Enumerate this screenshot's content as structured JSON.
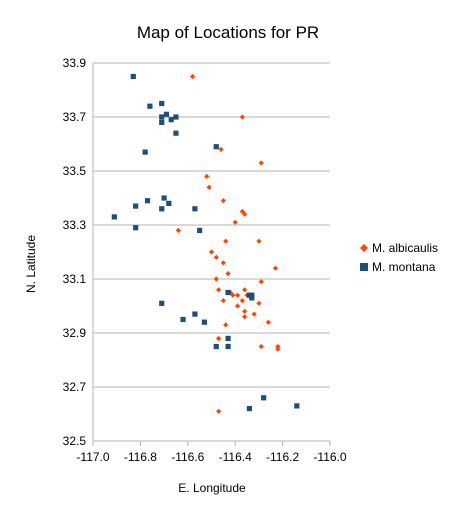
{
  "chart_data": {
    "type": "scatter",
    "title": "Map of Locations for PR",
    "xlabel": "E. Longitude",
    "ylabel": "N. Latitude",
    "xlim": [
      -117.0,
      -116.0
    ],
    "ylim": [
      32.5,
      33.9
    ],
    "x_ticks": [
      -117.0,
      -116.8,
      -116.6,
      -116.4,
      -116.2,
      -116.0
    ],
    "x_tick_labels": [
      "-117.0",
      "-116.8",
      "-116.6",
      "-116.4",
      "-116.2",
      "-116.0"
    ],
    "y_ticks": [
      32.5,
      32.7,
      32.9,
      33.1,
      33.3,
      33.5,
      33.7,
      33.9
    ],
    "y_tick_labels": [
      "32.5",
      "32.7",
      "32.9",
      "33.1",
      "33.3",
      "33.5",
      "33.7",
      "33.9"
    ],
    "grid": "horizontal",
    "legend_position": "right",
    "series": [
      {
        "name": "M. albicaulis",
        "marker": "diamond",
        "color": "#ff4500",
        "points": [
          [
            -116.58,
            33.85
          ],
          [
            -116.37,
            33.7
          ],
          [
            -116.46,
            33.58
          ],
          [
            -116.29,
            33.53
          ],
          [
            -116.52,
            33.48
          ],
          [
            -116.51,
            33.44
          ],
          [
            -116.45,
            33.39
          ],
          [
            -116.37,
            33.35
          ],
          [
            -116.36,
            33.34
          ],
          [
            -116.4,
            33.31
          ],
          [
            -116.64,
            33.28
          ],
          [
            -116.3,
            33.24
          ],
          [
            -116.44,
            33.24
          ],
          [
            -116.5,
            33.2
          ],
          [
            -116.48,
            33.18
          ],
          [
            -116.45,
            33.16
          ],
          [
            -116.23,
            33.14
          ],
          [
            -116.43,
            33.12
          ],
          [
            -116.48,
            33.1
          ],
          [
            -116.29,
            33.09
          ],
          [
            -116.47,
            33.06
          ],
          [
            -116.36,
            33.06
          ],
          [
            -116.42,
            33.05
          ],
          [
            -116.39,
            33.04
          ],
          [
            -116.41,
            33.04
          ],
          [
            -116.35,
            33.04
          ],
          [
            -116.45,
            33.02
          ],
          [
            -116.37,
            33.02
          ],
          [
            -116.39,
            33.0
          ],
          [
            -116.3,
            33.01
          ],
          [
            -116.36,
            32.98
          ],
          [
            -116.32,
            32.97
          ],
          [
            -116.36,
            32.96
          ],
          [
            -116.26,
            32.94
          ],
          [
            -116.44,
            32.93
          ],
          [
            -116.47,
            32.88
          ],
          [
            -116.29,
            32.85
          ],
          [
            -116.22,
            32.85
          ],
          [
            -116.22,
            32.84
          ],
          [
            -116.47,
            32.61
          ]
        ]
      },
      {
        "name": "M. montana",
        "marker": "square",
        "color": "#1f4e79",
        "points": [
          [
            -116.83,
            33.85
          ],
          [
            -116.76,
            33.74
          ],
          [
            -116.71,
            33.75
          ],
          [
            -116.71,
            33.7
          ],
          [
            -116.69,
            33.71
          ],
          [
            -116.71,
            33.68
          ],
          [
            -116.67,
            33.69
          ],
          [
            -116.65,
            33.7
          ],
          [
            -116.65,
            33.64
          ],
          [
            -116.48,
            33.59
          ],
          [
            -116.78,
            33.57
          ],
          [
            -116.77,
            33.39
          ],
          [
            -116.7,
            33.4
          ],
          [
            -116.68,
            33.38
          ],
          [
            -116.82,
            33.37
          ],
          [
            -116.71,
            33.36
          ],
          [
            -116.57,
            33.36
          ],
          [
            -116.91,
            33.33
          ],
          [
            -116.82,
            33.29
          ],
          [
            -116.55,
            33.28
          ],
          [
            -116.34,
            33.04
          ],
          [
            -116.43,
            33.05
          ],
          [
            -116.33,
            33.04
          ],
          [
            -116.33,
            33.03
          ],
          [
            -116.71,
            33.01
          ],
          [
            -116.57,
            32.97
          ],
          [
            -116.62,
            32.95
          ],
          [
            -116.53,
            32.94
          ],
          [
            -116.43,
            32.88
          ],
          [
            -116.48,
            32.85
          ],
          [
            -116.43,
            32.85
          ],
          [
            -116.28,
            32.66
          ],
          [
            -116.14,
            32.63
          ],
          [
            -116.34,
            32.62
          ]
        ]
      }
    ]
  }
}
